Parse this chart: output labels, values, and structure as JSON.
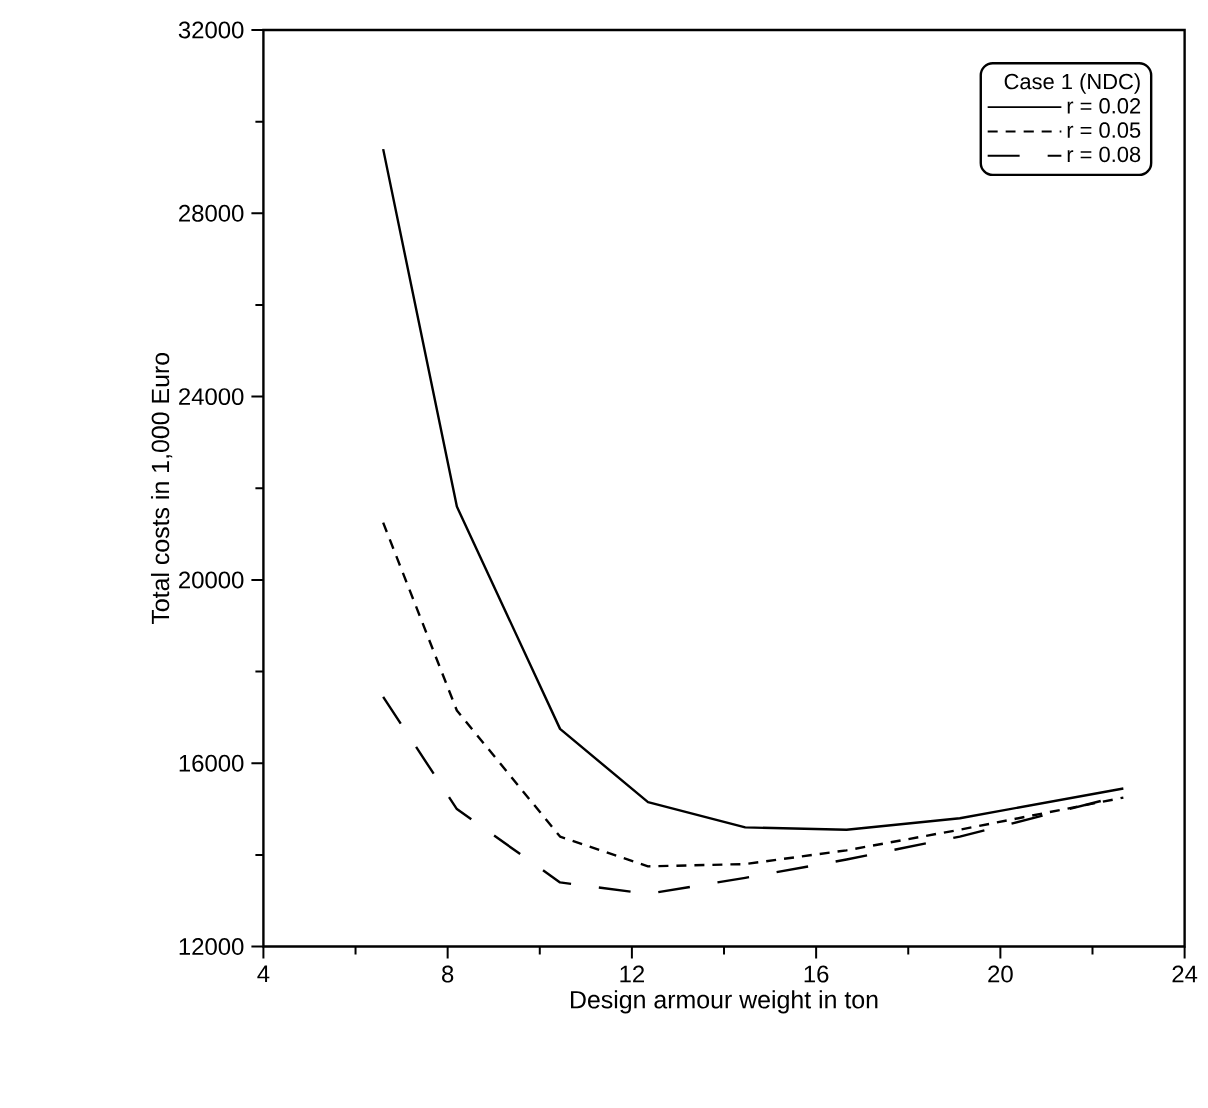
{
  "chart_data": {
    "type": "line",
    "xlabel": "Design armour weight in ton",
    "ylabel": "Total costs in 1,000 Euro",
    "legend_title": "Case 1 (NDC)",
    "x": [
      6.6,
      8.2,
      10.44,
      12.35,
      14.46,
      16.66,
      19.12,
      22.67
    ],
    "series": [
      {
        "name": "r = 0.02",
        "color": "#000000",
        "line_style": "solid",
        "values": [
          29400,
          21600,
          16750,
          15150,
          14600,
          14550,
          14800,
          15450
        ]
      },
      {
        "name": "r = 0.05",
        "color": "#000000",
        "line_style": "dashed",
        "values": [
          21250,
          17150,
          14400,
          13750,
          13800,
          14100,
          14550,
          15250
        ]
      },
      {
        "name": "r = 0.08",
        "color": "#000000",
        "line_style": "long dashed",
        "values": [
          17450,
          15000,
          13400,
          13150,
          13500,
          13900,
          14400,
          15300
        ]
      }
    ],
    "xlim": [
      4,
      24
    ],
    "ylim": [
      12000,
      32000
    ],
    "xticks": [
      4,
      8,
      12,
      16,
      20,
      24
    ],
    "yticks": [
      12000,
      16000,
      20000,
      24000,
      28000,
      32000
    ],
    "grid": false,
    "legend": "top right",
    "marker": "none"
  }
}
